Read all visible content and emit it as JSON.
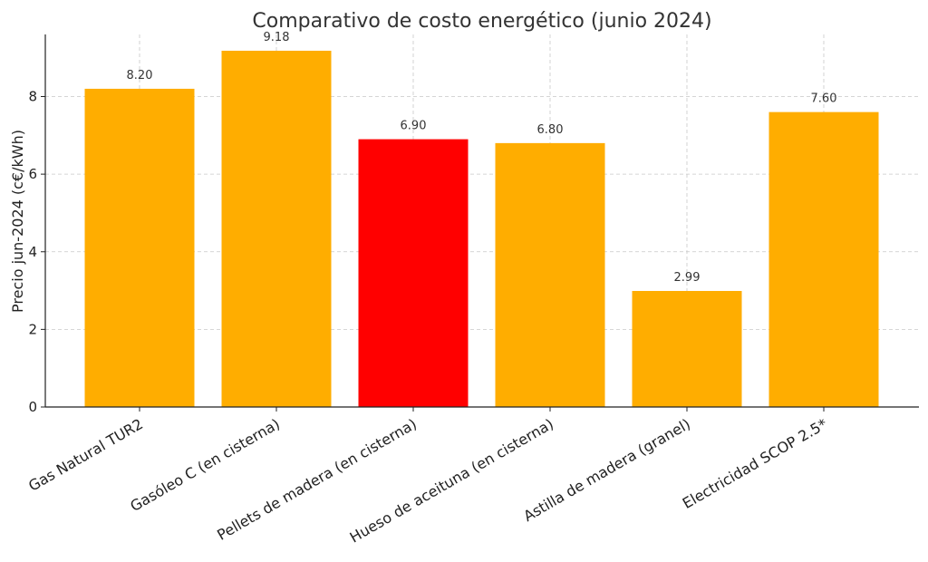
{
  "chart_data": {
    "type": "bar",
    "title": "Comparativo de costo energético (junio 2024)",
    "xlabel": "",
    "ylabel": "Precio jun-2024 (c€/kWh)",
    "categories": [
      "Gas Natural TUR2",
      "Gasóleo C (en cisterna)",
      "Pellets de madera (en cisterna)",
      "Hueso de aceituna (en cisterna)",
      "Astilla de madera (granel)",
      "Electricidad SCOP 2.5*"
    ],
    "values": [
      8.2,
      9.18,
      6.9,
      6.8,
      2.99,
      7.6
    ],
    "value_labels": [
      "8.20",
      "9.18",
      "6.90",
      "6.80",
      "2.99",
      "7.60"
    ],
    "colors": [
      "#ffad00",
      "#ffad00",
      "#ff0000",
      "#ffad00",
      "#ffad00",
      "#ffad00"
    ],
    "ylim": [
      0,
      9.6
    ],
    "yticks": [
      0,
      2,
      4,
      6,
      8
    ],
    "grid": true,
    "legend": "none"
  }
}
